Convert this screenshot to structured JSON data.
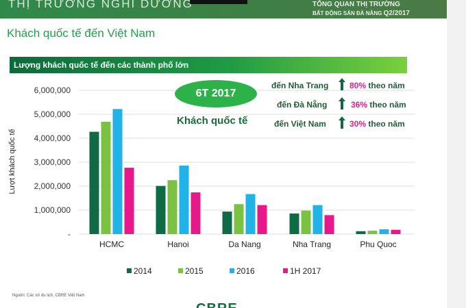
{
  "header": {
    "section_title": "THỊ TRƯỜNG NGHỈ DƯỠNG",
    "report_title_top": "TỔNG QUAN THỊ TRƯỜNG",
    "report_subtitle": "BẤT ĐỘNG SẢN ĐÀ NẴNG",
    "report_period": "Q2/2017"
  },
  "page_title": "Khách quốc tế đến Việt Nam",
  "banner": "Lượng khách quốc tế đến các thành phố lớn",
  "highlight": {
    "oval": "6T 2017",
    "caption": "Khách quốc tế",
    "stats": [
      {
        "label": "đến Nha Trang",
        "pct": "80%",
        "suffix": "theo năm",
        "icon": "arrow-up-icon"
      },
      {
        "label": "đến Đà Nẵng",
        "pct": "36%",
        "suffix": "theo năm",
        "icon": "arrow-up-icon"
      },
      {
        "label": "đến Việt Nam",
        "pct": "30%",
        "suffix": "theo năm",
        "icon": "arrow-up-icon"
      }
    ]
  },
  "source": "Nguồn: Các sở du lịch, CBRE Việt Nam",
  "logo": "CBRE",
  "chart_data": {
    "type": "bar",
    "title": "",
    "ylabel": "Lượt khách quốc tế",
    "xlabel": "",
    "ylim": [
      0,
      6000000
    ],
    "yticks": [
      0,
      1000000,
      2000000,
      3000000,
      4000000,
      5000000,
      6000000
    ],
    "ytick_labels": [
      "-",
      "1,000,000",
      "2,000,000",
      "3,000,000",
      "4,000,000",
      "5,000,000",
      "6,000,000"
    ],
    "grid": true,
    "legend": "bottom",
    "categories": [
      "HCMC",
      "Hanoi",
      "Da Nang",
      "Nha Trang",
      "Phu Quoc"
    ],
    "series": [
      {
        "name": "2014",
        "color": "#0e6b45",
        "values": [
          4270000,
          2010000,
          940000,
          860000,
          120000
        ]
      },
      {
        "name": "2015",
        "color": "#7cc242",
        "values": [
          4690000,
          2250000,
          1250000,
          980000,
          140000
        ]
      },
      {
        "name": "2016",
        "color": "#1fb3e8",
        "values": [
          5220000,
          2860000,
          1670000,
          1210000,
          200000
        ]
      },
      {
        "name": "1H 2017",
        "color": "#e6198a",
        "values": [
          2770000,
          1740000,
          1210000,
          790000,
          180000
        ]
      }
    ]
  }
}
